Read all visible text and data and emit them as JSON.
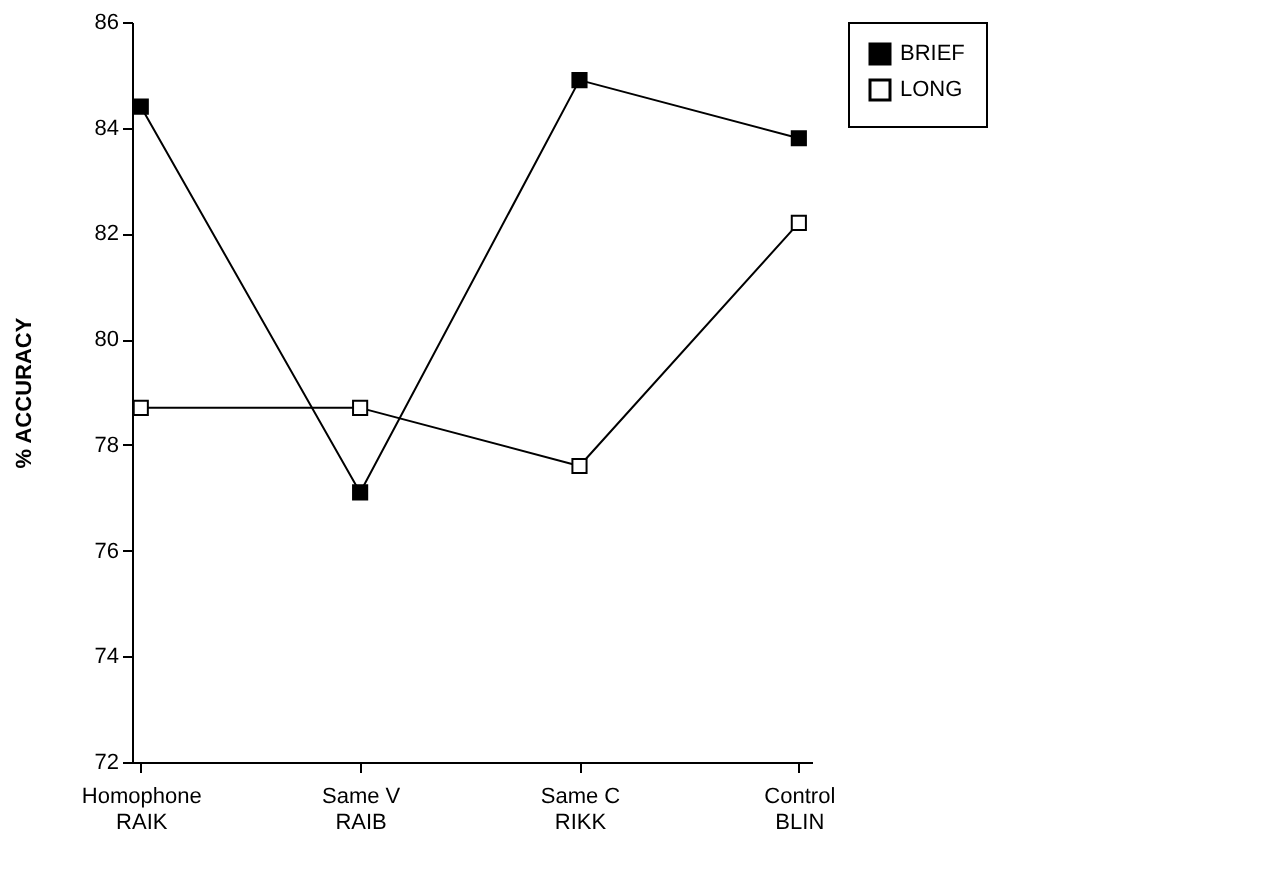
{
  "chart_data": {
    "type": "line",
    "ylabel": "% ACCURACY",
    "categories": [
      "Homophone\nRAIK",
      "Same V\nRAIB",
      "Same C\nRIKK",
      "Control\nBLIN"
    ],
    "series": [
      {
        "name": "BRIEF",
        "color": "#000000",
        "values": [
          84.4,
          77.1,
          84.9,
          83.8
        ]
      },
      {
        "name": "LONG",
        "color": "#000000",
        "values": [
          78.7,
          78.7,
          77.6,
          82.2
        ]
      }
    ],
    "ylim": [
      72,
      86
    ],
    "yticks": [
      72,
      74,
      76,
      78,
      80,
      82,
      84,
      86
    ],
    "marker": "square",
    "line_style": "solid",
    "grid": false,
    "legend": "right"
  }
}
